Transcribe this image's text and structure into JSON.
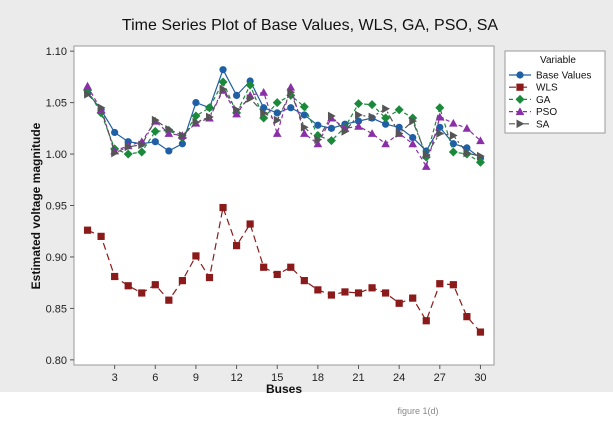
{
  "chart_data": {
    "type": "line",
    "title": "Time Series Plot of Base Values, WLS, GA, PSO, SA",
    "xlabel": "Buses",
    "ylabel": "Estimated voltage magnitude",
    "footer": "figure 1(d)",
    "xlim": [
      0,
      31
    ],
    "ylim": [
      0.795,
      1.105
    ],
    "xticks": [
      3,
      6,
      9,
      12,
      15,
      18,
      21,
      24,
      27,
      30
    ],
    "yticks": [
      0.8,
      0.85,
      0.9,
      0.95,
      1.0,
      1.05,
      1.1
    ],
    "ytick_labels": [
      "0.80",
      "0.85",
      "0.90",
      "0.95",
      "1.00",
      "1.05",
      "1.10"
    ],
    "legend_title": "Variable",
    "legend_position": "right",
    "background_colors": {
      "frame": "#ebebeb",
      "plot": "#ffffff"
    },
    "x": [
      1,
      2,
      3,
      4,
      5,
      6,
      7,
      8,
      9,
      10,
      11,
      12,
      13,
      14,
      15,
      16,
      17,
      18,
      19,
      20,
      21,
      22,
      23,
      24,
      25,
      26,
      27,
      28,
      29,
      30
    ],
    "series": [
      {
        "name": "Base Values",
        "color": "#1f5fa6",
        "marker": "circle",
        "dash": "solid",
        "values": [
          1.06,
          1.043,
          1.021,
          1.012,
          1.01,
          1.012,
          1.003,
          1.01,
          1.05,
          1.045,
          1.082,
          1.057,
          1.071,
          1.045,
          1.04,
          1.045,
          1.038,
          1.028,
          1.025,
          1.029,
          1.032,
          1.035,
          1.029,
          1.026,
          1.016,
          1.003,
          1.026,
          1.01,
          1.006,
          0.996
        ]
      },
      {
        "name": "WLS",
        "color": "#8b1a1a",
        "marker": "square",
        "dash": "long-dash",
        "values": [
          0.926,
          0.92,
          0.881,
          0.872,
          0.865,
          0.873,
          0.858,
          0.877,
          0.901,
          0.88,
          0.948,
          0.911,
          0.932,
          0.89,
          0.883,
          0.89,
          0.877,
          0.868,
          0.863,
          0.866,
          0.865,
          0.87,
          0.865,
          0.855,
          0.86,
          0.838,
          0.874,
          0.873,
          0.842,
          0.827
        ]
      },
      {
        "name": "GA",
        "color": "#1a8a3a",
        "marker": "diamond",
        "dash": "dashed",
        "values": [
          1.062,
          1.04,
          1.005,
          1.0,
          1.002,
          1.022,
          1.023,
          1.016,
          1.037,
          1.045,
          1.07,
          1.04,
          1.067,
          1.035,
          1.05,
          1.057,
          1.046,
          1.018,
          1.013,
          1.026,
          1.049,
          1.048,
          1.035,
          1.043,
          1.035,
          0.997,
          1.045,
          1.002,
          1.0,
          0.992
        ]
      },
      {
        "name": "PSO",
        "color": "#8a2fa8",
        "marker": "triangle-up",
        "dash": "dashed",
        "values": [
          1.066,
          1.043,
          1.003,
          1.008,
          1.012,
          1.032,
          1.02,
          1.018,
          1.03,
          1.035,
          1.062,
          1.039,
          1.057,
          1.06,
          1.02,
          1.065,
          1.02,
          1.01,
          1.035,
          1.025,
          1.027,
          1.02,
          1.01,
          1.02,
          1.01,
          0.988,
          1.036,
          1.03,
          1.025,
          1.013
        ]
      },
      {
        "name": "SA",
        "color": "#555555",
        "marker": "triangle-right",
        "dash": "dash-dot",
        "values": [
          1.058,
          1.045,
          1.001,
          1.007,
          1.009,
          1.033,
          1.024,
          1.018,
          1.031,
          1.036,
          1.063,
          1.043,
          1.054,
          1.04,
          1.033,
          1.06,
          1.026,
          1.014,
          1.037,
          1.022,
          1.038,
          1.036,
          1.044,
          1.02,
          1.032,
          0.999,
          1.02,
          1.018,
          1.001,
          0.998
        ]
      }
    ]
  }
}
